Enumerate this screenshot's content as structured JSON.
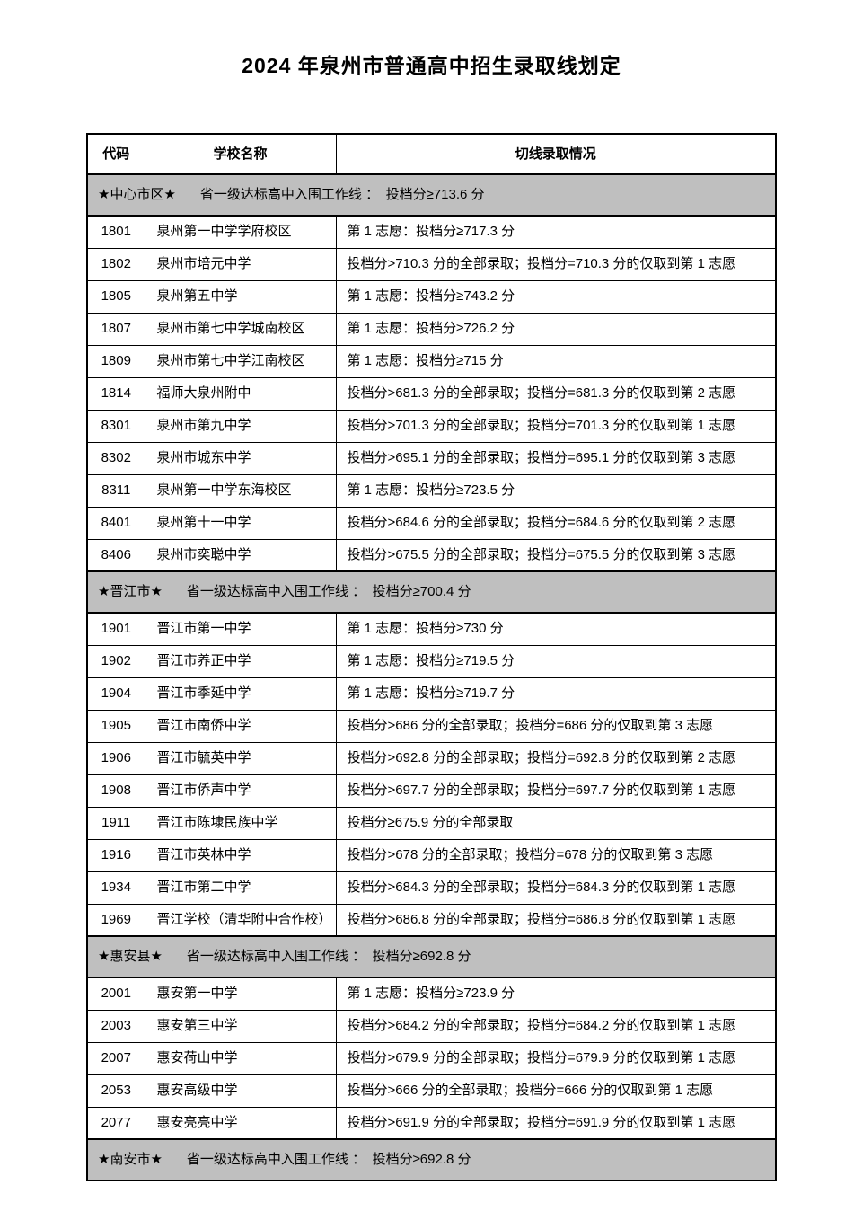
{
  "page": {
    "title": "2024 年泉州市普通高中招生录取线划定"
  },
  "table": {
    "section_bg": "#bfbfbf",
    "columns": [
      "代码",
      "学校名称",
      "切线录取情况"
    ],
    "sections": [
      {
        "region": "★中心市区★",
        "line": "省一级达标高中入围工作线 ：　投档分≥713.6 分",
        "rows": [
          {
            "code": "1801",
            "school": "泉州第一中学学府校区",
            "detail": "第 1 志愿：投档分≥717.3 分"
          },
          {
            "code": "1802",
            "school": "泉州市培元中学",
            "detail": "投档分>710.3 分的全部录取；投档分=710.3 分的仅取到第 1 志愿"
          },
          {
            "code": "1805",
            "school": "泉州第五中学",
            "detail": "第 1 志愿：投档分≥743.2 分"
          },
          {
            "code": "1807",
            "school": "泉州市第七中学城南校区",
            "detail": "第 1 志愿：投档分≥726.2 分"
          },
          {
            "code": "1809",
            "school": "泉州市第七中学江南校区",
            "detail": "第 1 志愿：投档分≥715 分"
          },
          {
            "code": "1814",
            "school": "福师大泉州附中",
            "detail": "投档分>681.3 分的全部录取；投档分=681.3 分的仅取到第 2 志愿"
          },
          {
            "code": "8301",
            "school": "泉州市第九中学",
            "detail": "投档分>701.3 分的全部录取；投档分=701.3 分的仅取到第 1 志愿"
          },
          {
            "code": "8302",
            "school": "泉州市城东中学",
            "detail": "投档分>695.1 分的全部录取；投档分=695.1 分的仅取到第 3 志愿"
          },
          {
            "code": "8311",
            "school": "泉州第一中学东海校区",
            "detail": "第 1 志愿：投档分≥723.5 分"
          },
          {
            "code": "8401",
            "school": "泉州第十一中学",
            "detail": "投档分>684.6 分的全部录取；投档分=684.6 分的仅取到第 2 志愿"
          },
          {
            "code": "8406",
            "school": "泉州市奕聪中学",
            "detail": "投档分>675.5 分的全部录取；投档分=675.5 分的仅取到第 3 志愿"
          }
        ]
      },
      {
        "region": "★晋江市★",
        "line": "省一级达标高中入围工作线 ：　投档分≥700.4 分",
        "rows": [
          {
            "code": "1901",
            "school": "晋江市第一中学",
            "detail": "第 1 志愿：投档分≥730 分"
          },
          {
            "code": "1902",
            "school": "晋江市养正中学",
            "detail": "第 1 志愿：投档分≥719.5 分"
          },
          {
            "code": "1904",
            "school": "晋江市季延中学",
            "detail": "第 1 志愿：投档分≥719.7 分"
          },
          {
            "code": "1905",
            "school": "晋江市南侨中学",
            "detail": "投档分>686 分的全部录取；投档分=686 分的仅取到第 3 志愿"
          },
          {
            "code": "1906",
            "school": "晋江市毓英中学",
            "detail": "投档分>692.8 分的全部录取；投档分=692.8 分的仅取到第 2 志愿"
          },
          {
            "code": "1908",
            "school": "晋江市侨声中学",
            "detail": "投档分>697.7 分的全部录取；投档分=697.7 分的仅取到第 1 志愿"
          },
          {
            "code": "1911",
            "school": "晋江市陈埭民族中学",
            "detail": "投档分≥675.9 分的全部录取"
          },
          {
            "code": "1916",
            "school": "晋江市英林中学",
            "detail": "投档分>678 分的全部录取；投档分=678 分的仅取到第 3 志愿"
          },
          {
            "code": "1934",
            "school": "晋江市第二中学",
            "detail": "投档分>684.3 分的全部录取；投档分=684.3 分的仅取到第 1 志愿"
          },
          {
            "code": "1969",
            "school": "晋江学校（清华附中合作校）",
            "detail": "投档分>686.8 分的全部录取；投档分=686.8 分的仅取到第 1 志愿"
          }
        ]
      },
      {
        "region": "★惠安县★",
        "line": "省一级达标高中入围工作线 ：　投档分≥692.8 分",
        "rows": [
          {
            "code": "2001",
            "school": "惠安第一中学",
            "detail": "第 1 志愿：投档分≥723.9 分"
          },
          {
            "code": "2003",
            "school": "惠安第三中学",
            "detail": "投档分>684.2 分的全部录取；投档分=684.2 分的仅取到第 1 志愿"
          },
          {
            "code": "2007",
            "school": "惠安荷山中学",
            "detail": "投档分>679.9 分的全部录取；投档分=679.9 分的仅取到第 1 志愿"
          },
          {
            "code": "2053",
            "school": "惠安高级中学",
            "detail": "投档分>666 分的全部录取；投档分=666 分的仅取到第 1 志愿"
          },
          {
            "code": "2077",
            "school": "惠安亮亮中学",
            "detail": "投档分>691.9 分的全部录取；投档分=691.9 分的仅取到第 1 志愿"
          }
        ]
      },
      {
        "region": "★南安市★",
        "line": "省一级达标高中入围工作线 ：　投档分≥692.8 分",
        "rows": []
      }
    ]
  }
}
